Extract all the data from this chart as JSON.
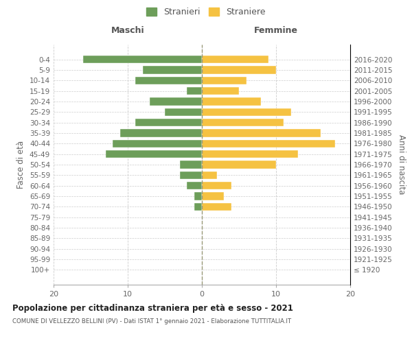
{
  "age_groups": [
    "100+",
    "95-99",
    "90-94",
    "85-89",
    "80-84",
    "75-79",
    "70-74",
    "65-69",
    "60-64",
    "55-59",
    "50-54",
    "45-49",
    "40-44",
    "35-39",
    "30-34",
    "25-29",
    "20-24",
    "15-19",
    "10-14",
    "5-9",
    "0-4"
  ],
  "birth_years": [
    "≤ 1920",
    "1921-1925",
    "1926-1930",
    "1931-1935",
    "1936-1940",
    "1941-1945",
    "1946-1950",
    "1951-1955",
    "1956-1960",
    "1961-1965",
    "1966-1970",
    "1971-1975",
    "1976-1980",
    "1981-1985",
    "1986-1990",
    "1991-1995",
    "1996-2000",
    "2001-2005",
    "2006-2010",
    "2011-2015",
    "2016-2020"
  ],
  "males": [
    0,
    0,
    0,
    0,
    0,
    0,
    1,
    1,
    2,
    3,
    3,
    13,
    12,
    11,
    9,
    5,
    7,
    2,
    9,
    8,
    16
  ],
  "females": [
    0,
    0,
    0,
    0,
    0,
    0,
    4,
    3,
    4,
    2,
    10,
    13,
    18,
    16,
    11,
    12,
    8,
    5,
    6,
    10,
    9
  ],
  "male_color": "#6d9e5a",
  "female_color": "#f5c242",
  "background_color": "#ffffff",
  "grid_color": "#cccccc",
  "title": "Popolazione per cittadinanza straniera per età e sesso - 2021",
  "subtitle": "COMUNE DI VELLEZZO BELLINI (PV) - Dati ISTAT 1° gennaio 2021 - Elaborazione TUTTITALIA.IT",
  "left_label": "Maschi",
  "right_label": "Femmine",
  "y_left_label": "Fasce di età",
  "y_right_label": "Anni di nascita",
  "legend_male": "Stranieri",
  "legend_female": "Straniere",
  "xlim": 20
}
